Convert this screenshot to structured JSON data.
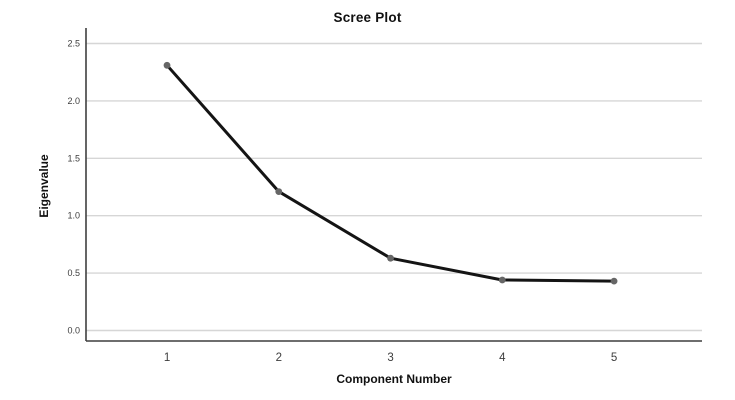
{
  "figure": {
    "title": "Scree Plot"
  },
  "chart_data": {
    "type": "line",
    "title": "Scree Plot",
    "xlabel": "Component Number",
    "ylabel": "Eigenvalue",
    "x": [
      1,
      2,
      3,
      4,
      5
    ],
    "series": [
      {
        "name": "Eigenvalue",
        "values": [
          2.31,
          1.21,
          0.63,
          0.44,
          0.43
        ]
      }
    ],
    "x_tick_labels": [
      "1",
      "2",
      "3",
      "4",
      "5"
    ],
    "y_tick_values": [
      0.0,
      0.5,
      1.0,
      1.5,
      2.0,
      2.5
    ],
    "y_tick_labels": [
      "0.0",
      "0.5",
      "1.0",
      "1.5",
      "2.0",
      "2.5"
    ],
    "xlim": [
      0.275,
      5.787
    ],
    "ylim": [
      -0.0915,
      2.635
    ],
    "grid": "horizontal-only",
    "legend": "none",
    "marker": "circle",
    "colors": {
      "line": "#141414",
      "marker": "#666666",
      "grid": "#d6d6d6",
      "axis": "#3f3f3f",
      "tick_label": "#3d3d3d",
      "title_text": "#111111"
    }
  }
}
